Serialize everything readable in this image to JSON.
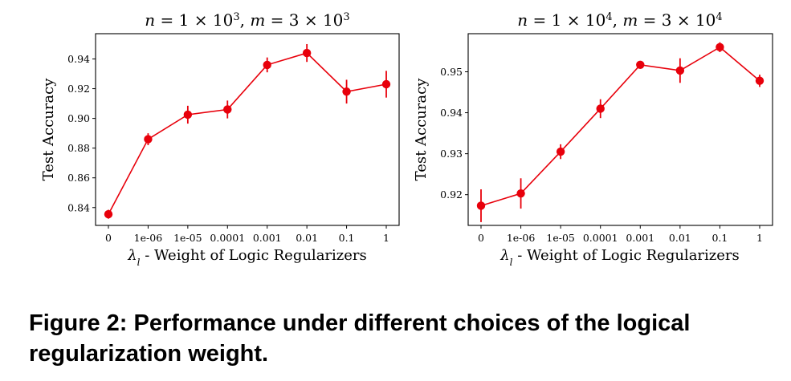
{
  "caption": "Figure 2: Performance under different choices of the logical regularization weight.",
  "colors": {
    "series": "#e8000b",
    "axis": "#000000"
  },
  "chart_data": [
    {
      "type": "line",
      "title": "n = 1 × 10^3, m = 3 × 10^3",
      "title_parts": {
        "n_lhs": "n",
        "eq": " = 1 × 10",
        "n_exp": "3",
        "sep": ", ",
        "m_lhs": "m",
        "eq2": " = 3 × 10",
        "m_exp": "3"
      },
      "xlabel": "λl - Weight of Logic Regularizers",
      "xlabel_parts": {
        "symbol": "λ",
        "sub": "l",
        "rest": " - Weight of Logic Regularizers"
      },
      "ylabel": "Test Accuracy",
      "categories": [
        "0",
        "1e-06",
        "1e-05",
        "0.0001",
        "0.001",
        "0.01",
        "0.1",
        "1"
      ],
      "values": [
        0.8355,
        0.886,
        0.9025,
        0.906,
        0.936,
        0.944,
        0.918,
        0.923
      ],
      "errors": [
        0.003,
        0.004,
        0.006,
        0.006,
        0.005,
        0.006,
        0.008,
        0.009
      ],
      "ylim": [
        0.828,
        0.957
      ],
      "yticks": [
        0.84,
        0.86,
        0.88,
        0.9,
        0.92,
        0.94
      ],
      "ytick_labels": [
        "0.84",
        "0.86",
        "0.88",
        "0.90",
        "0.92",
        "0.94"
      ]
    },
    {
      "type": "line",
      "title": "n = 1 × 10^4, m = 3 × 10^4",
      "title_parts": {
        "n_lhs": "n",
        "eq": " = 1 × 10",
        "n_exp": "4",
        "sep": ", ",
        "m_lhs": "m",
        "eq2": " = 3 × 10",
        "m_exp": "4"
      },
      "xlabel": "λl - Weight of Logic Regularizers",
      "xlabel_parts": {
        "symbol": "λ",
        "sub": "l",
        "rest": " - Weight of Logic Regularizers"
      },
      "ylabel": "Test Accuracy",
      "categories": [
        "0",
        "1e-06",
        "1e-05",
        "0.0001",
        "0.001",
        "0.01",
        "0.1",
        "1"
      ],
      "values": [
        0.9173,
        0.9203,
        0.9305,
        0.941,
        0.9517,
        0.9503,
        0.956,
        0.9478
      ],
      "errors": [
        0.004,
        0.0037,
        0.0018,
        0.0023,
        0.0008,
        0.003,
        0.0012,
        0.0015
      ],
      "ylim": [
        0.9125,
        0.9593
      ],
      "yticks": [
        0.92,
        0.93,
        0.94,
        0.95
      ],
      "ytick_labels": [
        "0.92",
        "0.93",
        "0.94",
        "0.95"
      ]
    }
  ]
}
